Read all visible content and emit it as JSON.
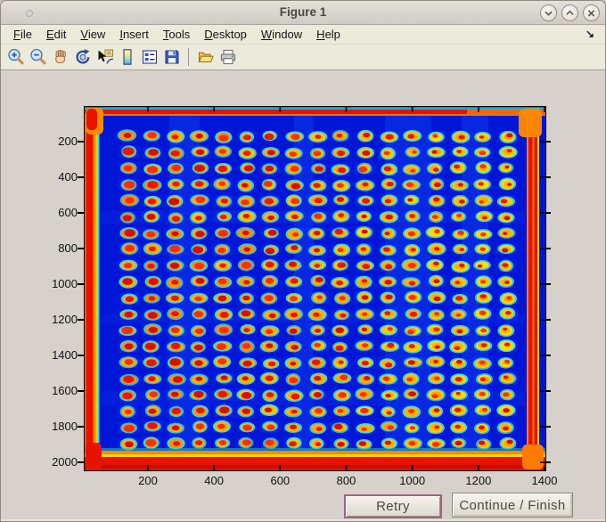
{
  "window": {
    "title": "Figure 1",
    "controls": [
      {
        "name": "minimize",
        "glyph": "chevron-down"
      },
      {
        "name": "maximize",
        "glyph": "chevron-up"
      },
      {
        "name": "close",
        "glyph": "x"
      }
    ]
  },
  "menu_bar": {
    "items": [
      {
        "label": "File",
        "mnemonic_index": 0
      },
      {
        "label": "Edit",
        "mnemonic_index": 0
      },
      {
        "label": "View",
        "mnemonic_index": 0
      },
      {
        "label": "Insert",
        "mnemonic_index": 0
      },
      {
        "label": "Tools",
        "mnemonic_index": 0
      },
      {
        "label": "Desktop",
        "mnemonic_index": 0
      },
      {
        "label": "Window",
        "mnemonic_index": 0
      },
      {
        "label": "Help",
        "mnemonic_index": 0
      }
    ],
    "overflow_arrow": "↘"
  },
  "toolbar": {
    "buttons": [
      {
        "name": "zoom-in"
      },
      {
        "name": "zoom-out"
      },
      {
        "name": "pan"
      },
      {
        "name": "rotate-3d"
      },
      {
        "name": "data-cursor"
      },
      {
        "name": "insert-colorbar"
      },
      {
        "name": "insert-legend"
      },
      {
        "name": "save-figure"
      },
      {
        "name": "separator"
      },
      {
        "name": "open-file"
      },
      {
        "name": "print-figure"
      }
    ]
  },
  "plot": {
    "type": "heatmap-image",
    "description": "jet-colormap microarray scan: grid of red/orange spots with cyan halos on deep blue background, red-orange saturated borders",
    "x_tick_labels": [
      "200",
      "400",
      "600",
      "800",
      "1000",
      "1200",
      "1400"
    ],
    "y_tick_labels": [
      "200",
      "400",
      "600",
      "800",
      "1000",
      "1200",
      "1400",
      "1600",
      "1800",
      "2000"
    ],
    "x_range": [
      0,
      1405
    ],
    "y_range": [
      0,
      2050
    ],
    "grid": {
      "rows": 20,
      "cols": 17
    },
    "palette": {
      "background": "#0016d6",
      "band_blue": "#1240f2",
      "halo_cyan": "#35e2e2",
      "ring_colors": [
        "#ff9100",
        "#ffb300",
        "#ffc800",
        "#ffdb00"
      ],
      "center_colors": [
        "#d60f00",
        "#e81800",
        "#ff2d00"
      ],
      "edge_red": "#e81200",
      "edge_orange": "#ff8800",
      "edge_yellow": "#ffd400",
      "edge_cyan": "#2fd8e8"
    }
  },
  "action_buttons": {
    "retry": "Retry",
    "continue": "Continue / Finish"
  }
}
